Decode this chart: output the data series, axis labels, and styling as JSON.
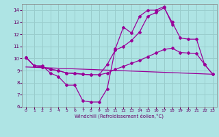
{
  "background_color": "#aee4e4",
  "grid_color": "#99cccc",
  "line_color": "#990099",
  "xlabel": "Windchill (Refroidissement éolien,°C)",
  "xlim": [
    -0.5,
    23.5
  ],
  "ylim": [
    6,
    14.5
  ],
  "xticks": [
    0,
    1,
    2,
    3,
    4,
    5,
    6,
    7,
    8,
    9,
    10,
    11,
    12,
    13,
    14,
    15,
    16,
    17,
    18,
    19,
    20,
    21,
    22,
    23
  ],
  "yticks": [
    6,
    7,
    8,
    9,
    10,
    11,
    12,
    13,
    14
  ],
  "line1_x": [
    0,
    1,
    2,
    3,
    4,
    5,
    6,
    7,
    8,
    9,
    10,
    11,
    12,
    13,
    14,
    15,
    16,
    17,
    18,
    19,
    20,
    21,
    22,
    23
  ],
  "line1_y": [
    10.1,
    9.4,
    9.4,
    8.8,
    8.5,
    7.8,
    7.8,
    6.5,
    6.4,
    6.4,
    7.5,
    10.8,
    12.6,
    12.1,
    13.5,
    14.0,
    14.0,
    14.3,
    12.8,
    null,
    null,
    null,
    null,
    null
  ],
  "line2_x": [
    0,
    1,
    2,
    3,
    4,
    5,
    6,
    7,
    8,
    9,
    10,
    11,
    12,
    13,
    14,
    15,
    16,
    17,
    18,
    19,
    20,
    21,
    22,
    23
  ],
  "line2_y": [
    10.1,
    9.4,
    9.3,
    9.1,
    9.0,
    8.8,
    8.8,
    8.7,
    8.65,
    8.65,
    9.5,
    10.7,
    11.0,
    11.5,
    12.2,
    13.5,
    13.8,
    14.2,
    13.0,
    11.7,
    11.6,
    11.6,
    9.5,
    8.7
  ],
  "line3_x": [
    0,
    1,
    2,
    3,
    4,
    5,
    6,
    7,
    8,
    9,
    10,
    11,
    12,
    13,
    14,
    15,
    16,
    17,
    18,
    19,
    20,
    21,
    22,
    23
  ],
  "line3_y": [
    10.1,
    9.4,
    9.3,
    9.1,
    9.0,
    8.8,
    8.75,
    8.7,
    8.65,
    8.65,
    8.8,
    9.1,
    9.35,
    9.6,
    9.85,
    10.15,
    10.45,
    10.75,
    10.85,
    10.5,
    10.45,
    10.4,
    9.5,
    8.7
  ],
  "line4_x": [
    0,
    23
  ],
  "line4_y": [
    9.3,
    8.7
  ]
}
